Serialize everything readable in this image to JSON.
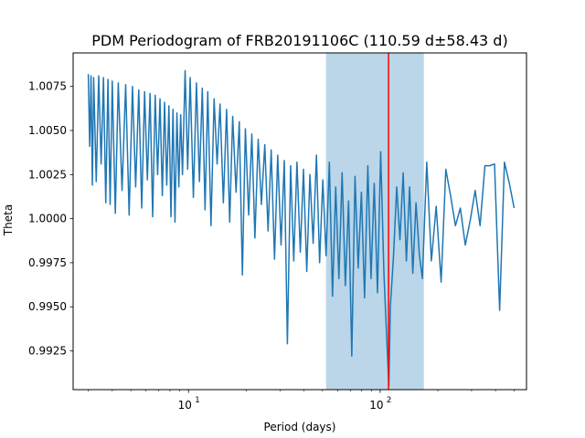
{
  "chart_data": {
    "type": "line",
    "title": "PDM Periodogram of FRB20191106C (110.59 d±58.43 d)",
    "xlabel": "Period (days)",
    "ylabel": "Theta",
    "xscale": "log",
    "xlim": [
      2.5,
      580
    ],
    "ylim": [
      0.9903,
      1.0094
    ],
    "x_ticks": [
      {
        "value": 10,
        "base": "10",
        "exp": "1"
      },
      {
        "value": 100,
        "base": "10",
        "exp": "2"
      }
    ],
    "y_ticks": [
      {
        "value": 0.9925,
        "label": "0.9925"
      },
      {
        "value": 0.995,
        "label": "0.9950"
      },
      {
        "value": 0.9975,
        "label": "0.9975"
      },
      {
        "value": 1.0,
        "label": "1.0000"
      },
      {
        "value": 1.0025,
        "label": "1.0025"
      },
      {
        "value": 1.005,
        "label": "1.0050"
      },
      {
        "value": 1.0075,
        "label": "1.0075"
      }
    ],
    "best_period": 110.59,
    "period_uncertainty": 58.43,
    "shaded_band": [
      52.16,
      169.02
    ],
    "grid": false,
    "legend": "none",
    "colors": {
      "series": "#1f77b4",
      "band": "#1f77b4",
      "band_opacity": 0.3,
      "best_period_line": "#ff0000"
    },
    "series": [
      {
        "x": [
          3.0,
          3.05,
          3.1,
          3.15,
          3.2,
          3.3,
          3.4,
          3.5,
          3.6,
          3.7,
          3.8,
          3.9,
          4.0,
          4.15,
          4.3,
          4.5,
          4.7,
          4.9,
          5.1,
          5.3,
          5.5,
          5.7,
          5.9,
          6.1,
          6.3,
          6.5,
          6.7,
          6.9,
          7.1,
          7.3,
          7.5,
          7.7,
          7.9,
          8.1,
          8.3,
          8.5,
          8.7,
          8.9,
          9.1,
          9.3,
          9.6,
          9.9,
          10.2,
          10.6,
          11.0,
          11.4,
          11.8,
          12.2,
          12.6,
          13.1,
          13.6,
          14.1,
          14.6,
          15.2,
          15.8,
          16.4,
          17.0,
          17.7,
          18.4,
          19.1,
          19.8,
          20.6,
          21.4,
          22.2,
          23.1,
          24.0,
          25.0,
          26.0,
          27.0,
          28.1,
          29.2,
          30.4,
          31.6,
          32.8,
          34.1,
          35.4,
          36.8,
          38.3,
          39.8,
          41.4,
          43.0,
          44.7,
          46.5,
          48.3,
          50.2,
          52.2,
          54.3,
          56.4,
          58.6,
          60.9,
          63.3,
          65.8,
          68.4,
          71.1,
          73.9,
          76.8,
          79.8,
          82.9,
          86.2,
          89.6,
          93.1,
          96.8,
          100.6,
          104.6,
          108.7,
          111.0,
          113.0,
          117.4,
          122.0,
          126.8,
          131.8,
          137.0,
          142.4,
          148.0,
          153.8,
          160.0,
          166.0,
          175.0,
          185.0,
          196.0,
          208.0,
          220.0,
          233.0,
          247.0,
          262.0,
          278.0,
          295.0,
          313.0,
          332.0,
          352.0,
          373.0,
          395.0,
          420.0,
          445.0,
          472.0,
          500.0
        ],
        "y": [
          1.0082,
          1.0041,
          1.0081,
          1.0019,
          1.008,
          1.0021,
          1.0081,
          1.0031,
          1.008,
          1.0009,
          1.0079,
          1.0008,
          1.0078,
          1.0003,
          1.0077,
          1.0016,
          1.0076,
          1.0002,
          1.0075,
          1.0018,
          1.0073,
          1.0006,
          1.0072,
          1.0022,
          1.0071,
          1.0001,
          1.007,
          1.0025,
          1.0068,
          1.0013,
          1.0066,
          1.0019,
          1.0064,
          1.0001,
          1.0062,
          0.9998,
          1.006,
          1.0018,
          1.0059,
          1.0025,
          1.0084,
          1.0028,
          1.008,
          1.0012,
          1.0077,
          1.0021,
          1.0074,
          1.0005,
          1.0072,
          0.9996,
          1.0068,
          1.0031,
          1.0065,
          1.0009,
          1.0062,
          0.9998,
          1.0058,
          1.0015,
          1.0055,
          0.9968,
          1.0051,
          1.0002,
          1.0048,
          0.9989,
          1.0045,
          1.0008,
          1.0042,
          0.9993,
          1.0039,
          0.9977,
          1.0036,
          0.9985,
          1.0033,
          0.9929,
          1.003,
          0.9976,
          1.0032,
          0.9981,
          1.0028,
          0.997,
          1.0025,
          0.9986,
          1.0036,
          0.9975,
          1.0022,
          0.9979,
          1.0032,
          0.9956,
          1.0018,
          0.9966,
          1.0026,
          0.9962,
          1.001,
          0.9922,
          1.0024,
          0.9972,
          1.0015,
          0.9955,
          1.003,
          0.9966,
          1.002,
          0.9958,
          1.0038,
          0.9969,
          0.9927,
          0.9905,
          0.995,
          0.9979,
          1.0018,
          0.9988,
          1.0026,
          0.9976,
          1.0018,
          0.9969,
          1.0009,
          0.998,
          0.9966,
          1.0032,
          0.9976,
          1.0007,
          0.9964,
          1.0028,
          1.0013,
          0.9996,
          1.0006,
          0.9985,
          0.9999,
          1.0016,
          0.9996,
          1.003,
          1.003,
          1.0031,
          0.9948,
          1.0032,
          1.002,
          1.0006
        ]
      }
    ]
  }
}
